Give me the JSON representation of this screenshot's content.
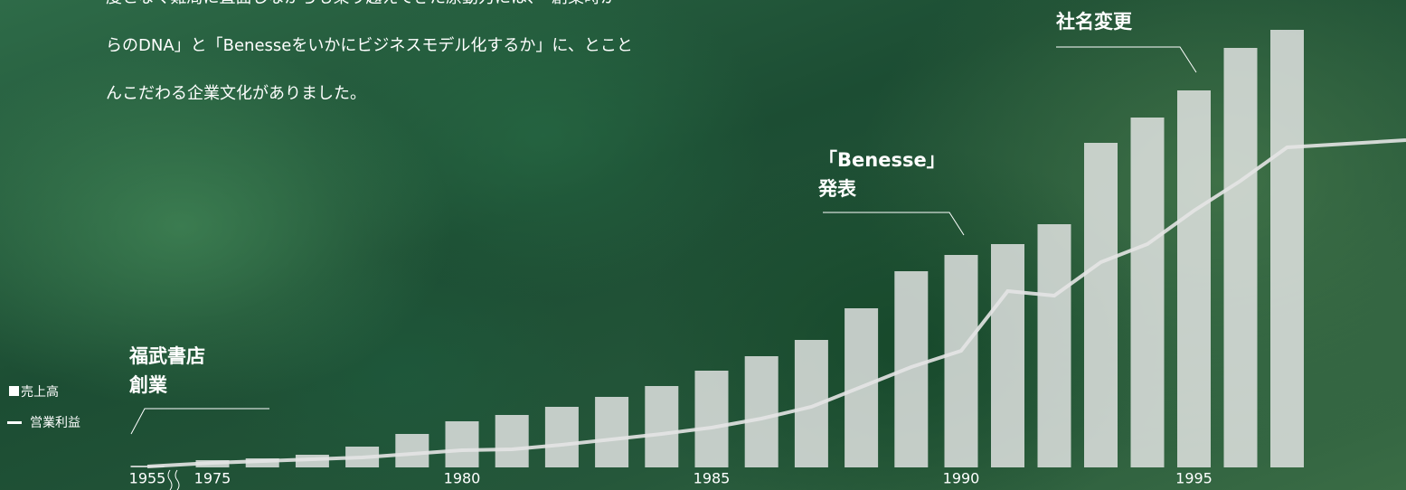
{
  "intro": {
    "lines": [
      "度となく難局に直面しながらも乗り越えてきた原動力には、「創業時か",
      "らのDNA」と「Benesseをいかにビジネスモデル化するか」に、とこと",
      "んこだわる企業文化がありました。"
    ]
  },
  "chart_data": {
    "type": "bar",
    "categories": [
      "1955",
      "1975",
      null,
      null,
      null,
      null,
      "1980",
      null,
      null,
      null,
      null,
      "1985",
      null,
      null,
      null,
      null,
      "1990",
      null,
      null,
      null,
      null,
      "1995",
      null,
      null,
      null
    ],
    "series": [
      {
        "name": "売上高",
        "type": "bar",
        "color": "#e8e8e8",
        "values": [
          2,
          8,
          10,
          14,
          23,
          37,
          51,
          58,
          67,
          78,
          90,
          107,
          123,
          141,
          176,
          217,
          235,
          247,
          269,
          359,
          387,
          417,
          464,
          484,
          null
        ]
      },
      {
        "name": "営業利益",
        "type": "line",
        "color": "#e4e4e4",
        "values": [
          1,
          5,
          7,
          9,
          11,
          15,
          19,
          20,
          25,
          31,
          37,
          44,
          54,
          67,
          89,
          111,
          129,
          195,
          190,
          227,
          247,
          284,
          317,
          354,
          362
        ]
      }
    ],
    "annotations": [
      {
        "lines": [
          "福武書店",
          "創業"
        ],
        "index": 0
      },
      {
        "lines": [
          "「Benesse」",
          "発表"
        ],
        "index": 16
      },
      {
        "lines": [
          "社名変更"
        ],
        "index": 21
      }
    ]
  }
}
